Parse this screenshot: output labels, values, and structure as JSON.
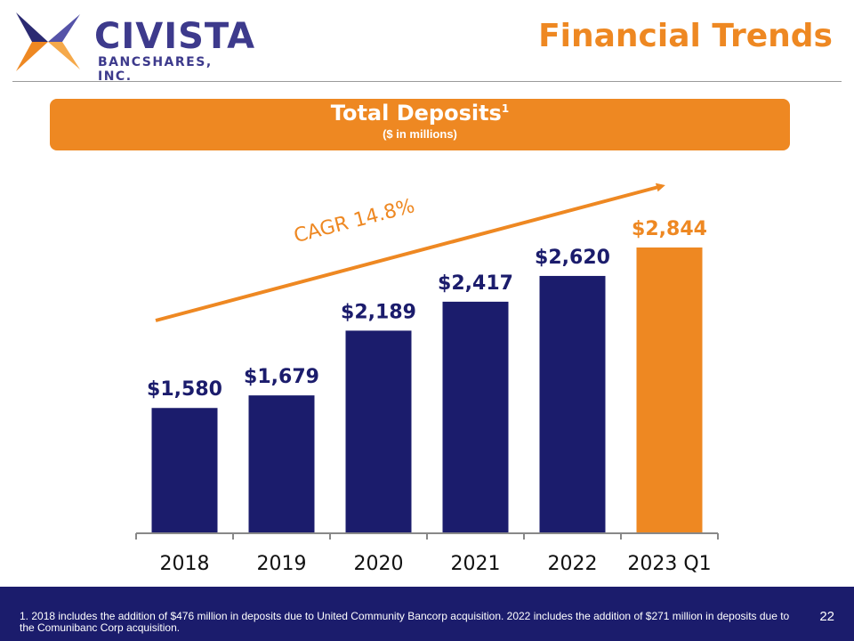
{
  "header": {
    "logo_name": "CIVISTA",
    "logo_sub": "BANCSHARES, INC.",
    "title": "Financial Trends",
    "logo_colors": [
      "#2b2a72",
      "#5553a8",
      "#ee8822",
      "#f5a94a"
    ]
  },
  "banner": {
    "title": "Total Deposits",
    "superscript": "1",
    "subtitle": "($ in millions)"
  },
  "chart_data": {
    "type": "bar",
    "categories": [
      "2018",
      "2019",
      "2020",
      "2021",
      "2022",
      "2023 Q1"
    ],
    "values": [
      1580,
      1679,
      2189,
      2417,
      2620,
      2844
    ],
    "value_labels": [
      "$1,580",
      "$1,679",
      "$2,189",
      "$2,417",
      "$2,620",
      "$2,844"
    ],
    "bar_colors": [
      "#1b1c6c",
      "#1b1c6c",
      "#1b1c6c",
      "#1b1c6c",
      "#1b1c6c",
      "#ee8822"
    ],
    "ylim": [
      600,
      2844
    ],
    "grid": false,
    "annotation": "CAGR 14.8%"
  },
  "footer": {
    "note": "1. 2018 includes the addition of $476 million in deposits due to United Community Bancorp acquisition. 2022 includes the addition of $271 million in deposits due to the Comunibanc Corp acquisition.",
    "page_number": "22"
  }
}
